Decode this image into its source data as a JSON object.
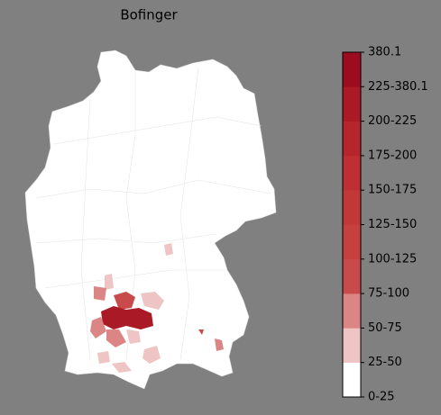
{
  "title": "Bofinger",
  "colorbar": {
    "labels": [
      "0-25",
      "25-50",
      "50-75",
      "75-100",
      "100-125",
      "125-150",
      "150-175",
      "175-200",
      "200-225",
      "225-380.1",
      "380.1"
    ],
    "colors": [
      "#ffffff",
      "#efc4c4",
      "#dc8585",
      "#c94a4a",
      "#c6403f",
      "#c23838",
      "#bd2f33",
      "#b5252c",
      "#aa1a26",
      "#9c0c1f"
    ]
  }
}
